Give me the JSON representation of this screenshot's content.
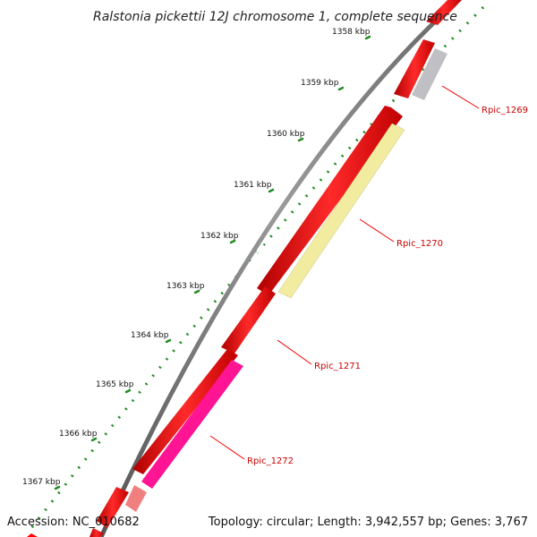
{
  "title": "Ralstonia pickettii 12J chromosome 1, complete sequence",
  "ticks": [
    "1358 kbp",
    "1359 kbp",
    "1360 kbp",
    "1361 kbp",
    "1362 kbp",
    "1363 kbp",
    "1364 kbp",
    "1365 kbp",
    "1366 kbp",
    "1367 kbp"
  ],
  "genes": [
    {
      "id": "Rpic_1269",
      "label": "Rpic_1269",
      "color": "#c0c0c4"
    },
    {
      "id": "Rpic_1270",
      "label": "Rpic_1270",
      "color": "#f2eca0"
    },
    {
      "id": "Rpic_1271",
      "label": "Rpic_1271",
      "color": "#ff0000"
    },
    {
      "id": "Rpic_1272",
      "label": "Rpic_1272",
      "color": "#ff1493"
    }
  ],
  "colors": {
    "backbone": "#707070",
    "cds": "#ff0000",
    "tick": "#228b22",
    "label": "#cc0000",
    "faded_gene": "#f08080"
  },
  "footer": {
    "accession": "Accession: NC_010682",
    "summary": "Topology: circular; Length: 3,942,557 bp; Genes: 3,767"
  }
}
